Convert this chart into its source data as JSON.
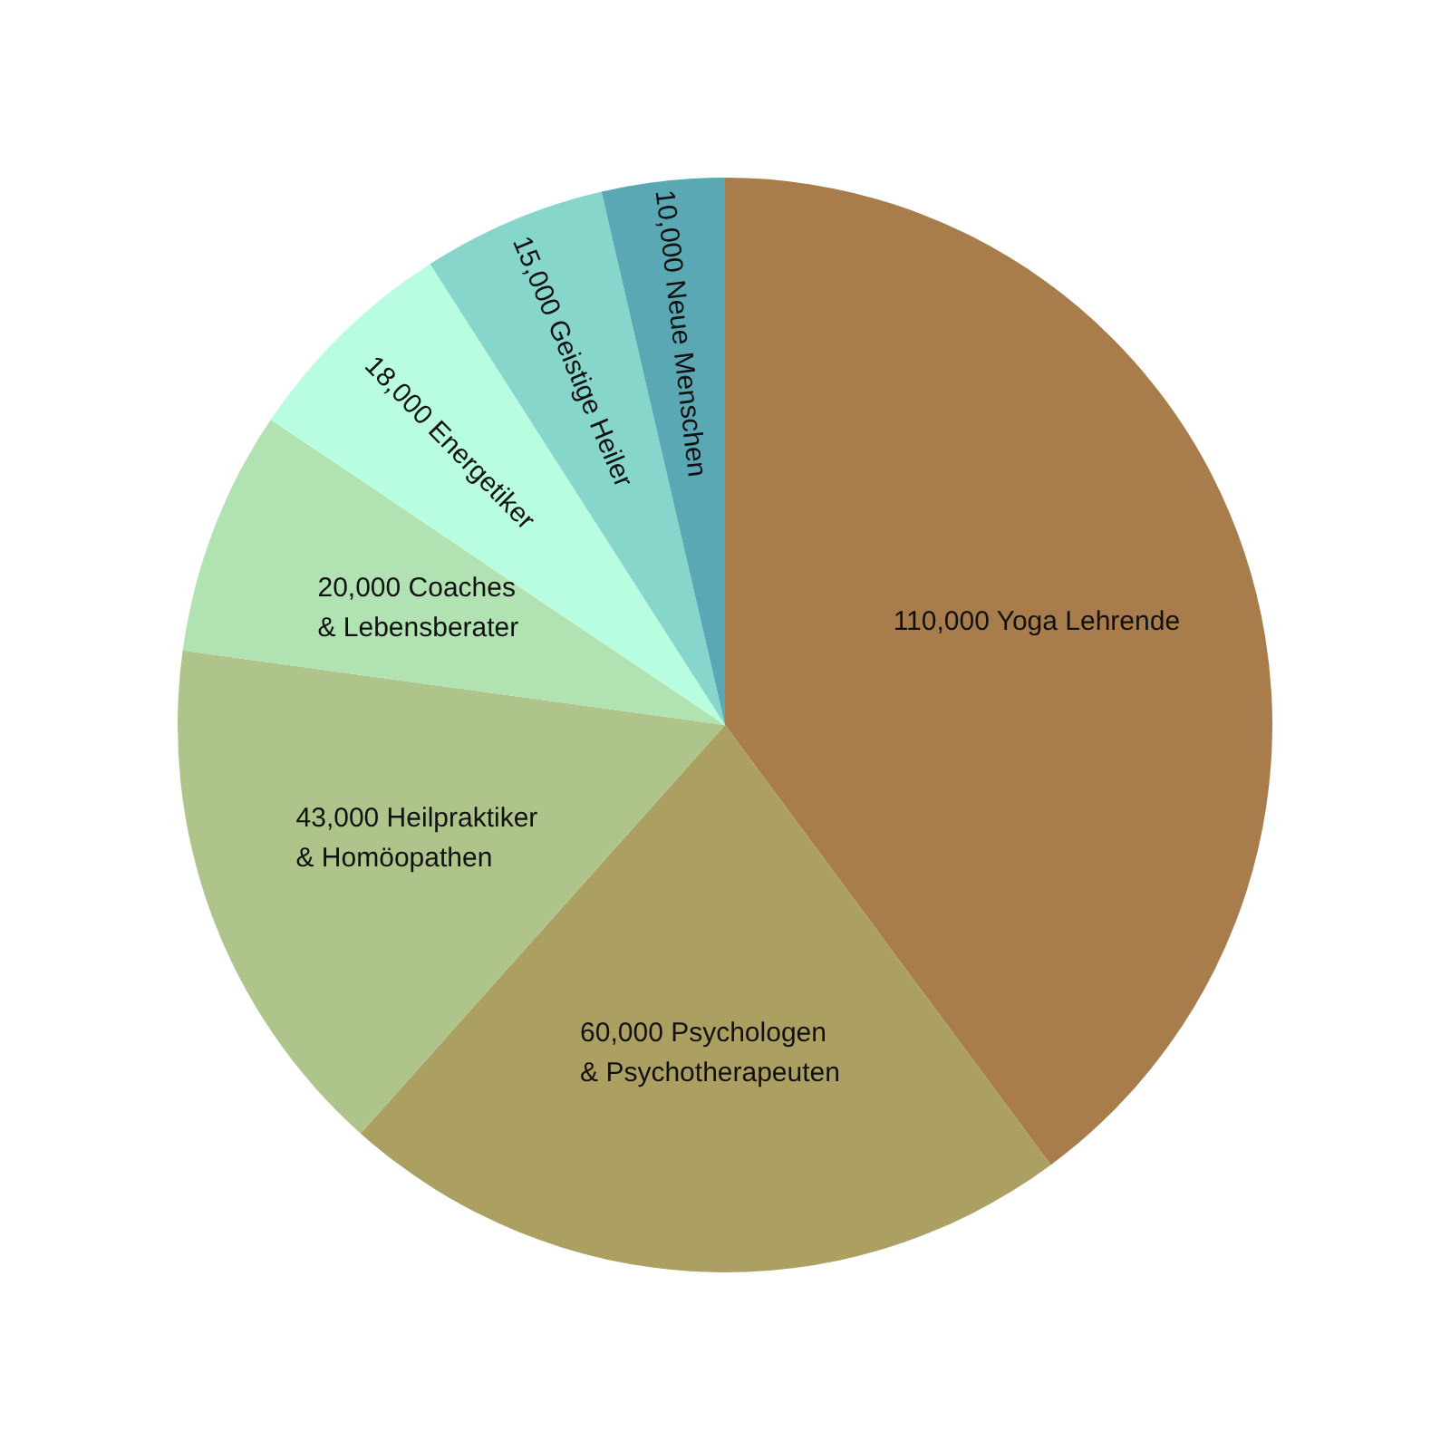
{
  "chart_data": {
    "type": "pie",
    "categories": [
      "Yoga Lehrende",
      "Psychologen\n& Psychotherapeuten",
      "Heilpraktiker\n& Homöopathen",
      "Coaches\n& Lebensberater",
      "Energetiker",
      "Geistige Heiler",
      "Neue Menschen"
    ],
    "values": [
      110000,
      60000,
      43000,
      20000,
      18000,
      15000,
      10000
    ],
    "value_labels": [
      "110,000",
      "60,000",
      "43,000",
      "20,000",
      "18,000",
      "15,000",
      "10,000"
    ],
    "colors": [
      "#a87d4b",
      "#ab9f62",
      "#aec48a",
      "#b1e2b2",
      "#b9fde0",
      "#86d6cc",
      "#5aa8b4"
    ]
  }
}
